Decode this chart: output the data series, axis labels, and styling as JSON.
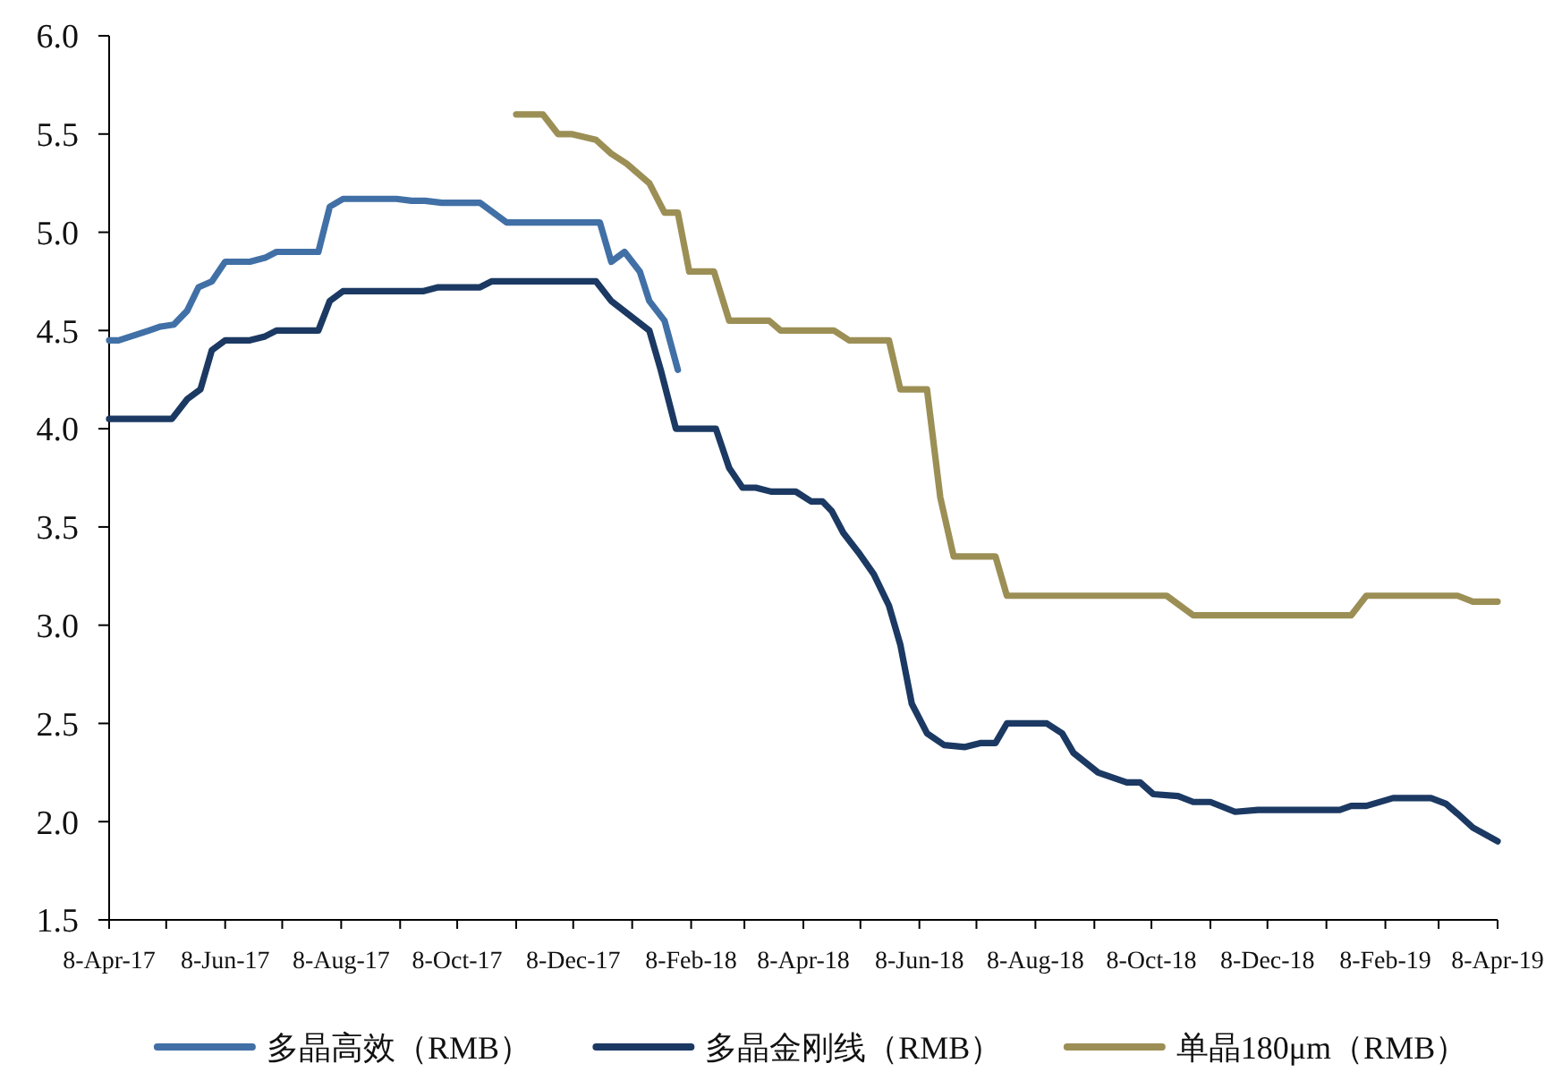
{
  "chart_data": {
    "type": "line",
    "legend": "bottom",
    "xlim": [
      "2017-04-08",
      "2019-04-08"
    ],
    "xticks": [
      {
        "value": "2017-04-08",
        "label": "8-Apr-17"
      },
      {
        "value": "2017-05-08",
        "label": null
      },
      {
        "value": "2017-06-08",
        "label": "8-Jun-17"
      },
      {
        "value": "2017-07-08",
        "label": null
      },
      {
        "value": "2017-08-08",
        "label": "8-Aug-17"
      },
      {
        "value": "2017-09-08",
        "label": null
      },
      {
        "value": "2017-10-08",
        "label": "8-Oct-17"
      },
      {
        "value": "2017-11-08",
        "label": null
      },
      {
        "value": "2017-12-08",
        "label": "8-Dec-17"
      },
      {
        "value": "2018-01-08",
        "label": null
      },
      {
        "value": "2018-02-08",
        "label": "8-Feb-18"
      },
      {
        "value": "2018-03-08",
        "label": null
      },
      {
        "value": "2018-04-08",
        "label": "8-Apr-18"
      },
      {
        "value": "2018-05-08",
        "label": null
      },
      {
        "value": "2018-06-08",
        "label": "8-Jun-18"
      },
      {
        "value": "2018-07-08",
        "label": null
      },
      {
        "value": "2018-08-08",
        "label": "8-Aug-18"
      },
      {
        "value": "2018-09-08",
        "label": null
      },
      {
        "value": "2018-10-08",
        "label": "8-Oct-18"
      },
      {
        "value": "2018-11-08",
        "label": null
      },
      {
        "value": "2018-12-08",
        "label": "8-Dec-18"
      },
      {
        "value": "2019-01-08",
        "label": null
      },
      {
        "value": "2019-02-08",
        "label": "8-Feb-19"
      },
      {
        "value": "2019-03-08",
        "label": null
      },
      {
        "value": "2019-04-08",
        "label": "8-Apr-19"
      }
    ],
    "ylim": [
      1.5,
      6.0
    ],
    "yticks": [
      1.5,
      {
        "value": 2,
        "label": "2.0"
      },
      2.5,
      {
        "value": 3,
        "label": "3.0"
      },
      3.5,
      {
        "value": 4,
        "label": "4.0"
      },
      4.5,
      {
        "value": 5,
        "label": "5.0"
      },
      5.5,
      {
        "value": 6,
        "label": "6.0"
      }
    ],
    "series": [
      {
        "name": "多晶高效（RMB）",
        "color": "#4170a6",
        "x": [
          "2017-04-08",
          "2017-04-13",
          "2017-04-29",
          "2017-05-05",
          "2017-05-12",
          "2017-05-19",
          "2017-05-25",
          "2017-06-01",
          "2017-06-08",
          "2017-06-21",
          "2017-06-29",
          "2017-07-05",
          "2017-07-27",
          "2017-08-02",
          "2017-08-09",
          "2017-09-06",
          "2017-09-14",
          "2017-09-21",
          "2017-09-30",
          "2017-10-20",
          "2017-11-03",
          "2017-12-22",
          "2017-12-28",
          "2018-01-04",
          "2018-01-12",
          "2018-01-17",
          "2018-01-25",
          "2018-02-01"
        ],
        "values": [
          4.45,
          4.45,
          4.5,
          4.52,
          4.53,
          4.6,
          4.72,
          4.75,
          4.85,
          4.85,
          4.87,
          4.9,
          4.9,
          5.13,
          5.17,
          5.17,
          5.16,
          5.16,
          5.15,
          5.15,
          5.05,
          5.05,
          4.85,
          4.9,
          4.8,
          4.65,
          4.55,
          4.3
        ]
      },
      {
        "name": "多晶金刚线（RMB）",
        "color": "#1b3962",
        "x": [
          "2017-04-08",
          "2017-05-11",
          "2017-05-19",
          "2017-05-26",
          "2017-06-01",
          "2017-06-08",
          "2017-06-21",
          "2017-06-29",
          "2017-07-05",
          "2017-07-27",
          "2017-08-02",
          "2017-08-09",
          "2017-09-20",
          "2017-09-28",
          "2017-10-20",
          "2017-10-26",
          "2017-12-20",
          "2017-12-28",
          "2018-01-17",
          "2018-01-23",
          "2018-01-31",
          "2018-02-21",
          "2018-02-28",
          "2018-03-07",
          "2018-03-14",
          "2018-03-22",
          "2018-04-04",
          "2018-04-12",
          "2018-04-18",
          "2018-04-23",
          "2018-04-29",
          "2018-05-07",
          "2018-05-15",
          "2018-05-23",
          "2018-05-29",
          "2018-06-04",
          "2018-06-12",
          "2018-06-21",
          "2018-07-02",
          "2018-07-10",
          "2018-07-18",
          "2018-07-24",
          "2018-08-14",
          "2018-08-22",
          "2018-08-28",
          "2018-09-10",
          "2018-09-25",
          "2018-10-02",
          "2018-10-09",
          "2018-10-22",
          "2018-10-30",
          "2018-11-08",
          "2018-11-21",
          "2018-12-03",
          "2019-01-15",
          "2019-01-21",
          "2019-01-29",
          "2019-02-12",
          "2019-03-04",
          "2019-03-12",
          "2019-03-18",
          "2019-03-26",
          "2019-04-08"
        ],
        "values": [
          4.05,
          4.05,
          4.15,
          4.2,
          4.4,
          4.45,
          4.45,
          4.47,
          4.5,
          4.5,
          4.65,
          4.7,
          4.7,
          4.72,
          4.72,
          4.75,
          4.75,
          4.65,
          4.5,
          4.3,
          4.0,
          4.0,
          3.8,
          3.7,
          3.7,
          3.68,
          3.68,
          3.63,
          3.63,
          3.58,
          3.47,
          3.37,
          3.26,
          3.1,
          2.9,
          2.6,
          2.45,
          2.39,
          2.38,
          2.4,
          2.4,
          2.5,
          2.5,
          2.45,
          2.35,
          2.25,
          2.2,
          2.2,
          2.14,
          2.13,
          2.1,
          2.1,
          2.05,
          2.06,
          2.06,
          2.08,
          2.08,
          2.12,
          2.12,
          2.09,
          2.04,
          1.97,
          1.9
        ]
      },
      {
        "name": "单晶180μm（RMB）",
        "color": "#9c8f55",
        "x": [
          "2017-11-08",
          "2017-11-22",
          "2017-11-30",
          "2017-12-07",
          "2017-12-20",
          "2017-12-28",
          "2018-01-05",
          "2018-01-17",
          "2018-01-25",
          "2018-02-01",
          "2018-02-07",
          "2018-02-20",
          "2018-02-28",
          "2018-03-21",
          "2018-03-27",
          "2018-04-24",
          "2018-05-02",
          "2018-05-23",
          "2018-05-29",
          "2018-06-12",
          "2018-06-19",
          "2018-06-26",
          "2018-07-18",
          "2018-07-24",
          "2018-10-16",
          "2018-10-30",
          "2019-01-21",
          "2019-01-29",
          "2019-03-18",
          "2019-03-26",
          "2019-04-08"
        ],
        "values": [
          5.6,
          5.6,
          5.5,
          5.5,
          5.47,
          5.4,
          5.35,
          5.25,
          5.1,
          5.1,
          4.8,
          4.8,
          4.55,
          4.55,
          4.5,
          4.5,
          4.45,
          4.45,
          4.2,
          4.2,
          3.65,
          3.35,
          3.35,
          3.15,
          3.15,
          3.05,
          3.05,
          3.15,
          3.15,
          3.12,
          3.12
        ]
      }
    ]
  }
}
